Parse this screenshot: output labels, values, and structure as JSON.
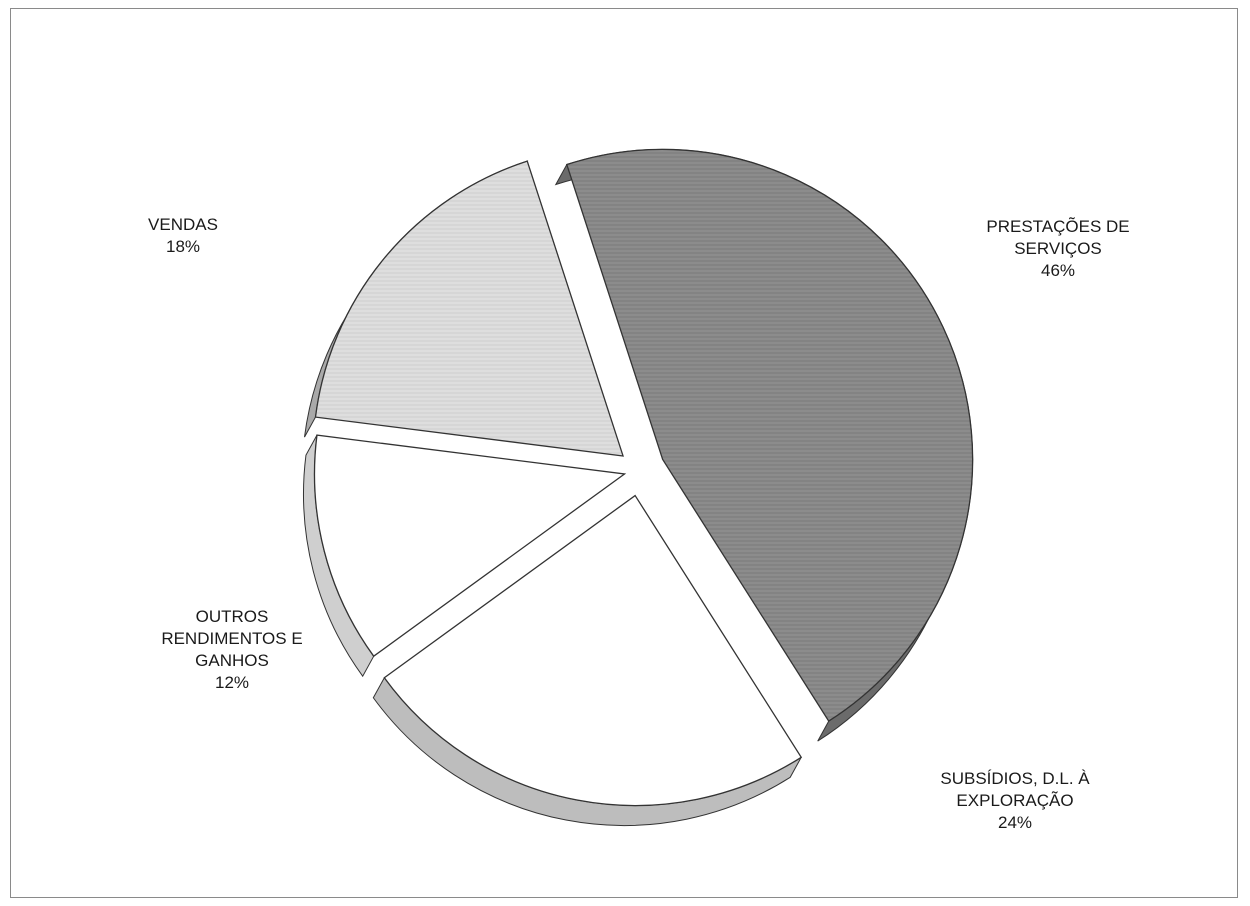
{
  "chart_data": {
    "type": "pie",
    "style": "3d-exploded",
    "legend": "none",
    "slices": [
      {
        "name": "PRESTAÇÕES DE SERVIÇOS",
        "label_lines": [
          "PRESTAÇÕES DE",
          "SERVIÇOS"
        ],
        "percent_label": "46%",
        "value": 46,
        "color": "#8f8f8f"
      },
      {
        "name": "SUBSÍDIOS, D.L. À EXPLORAÇÃO",
        "label_lines": [
          "SUBSÍDIOS, D.L. À",
          "EXPLORAÇÃO"
        ],
        "percent_label": "24%",
        "value": 24,
        "color": "#ffffff"
      },
      {
        "name": "OUTROS RENDIMENTOS E GANHOS",
        "label_lines": [
          "OUTROS",
          "RENDIMENTOS E",
          "GANHOS"
        ],
        "percent_label": "12%",
        "value": 12,
        "color": "#ffffff"
      },
      {
        "name": "VENDAS",
        "label_lines": [
          "VENDAS"
        ],
        "percent_label": "18%",
        "value": 18,
        "color": "#dcdcdc"
      }
    ]
  }
}
